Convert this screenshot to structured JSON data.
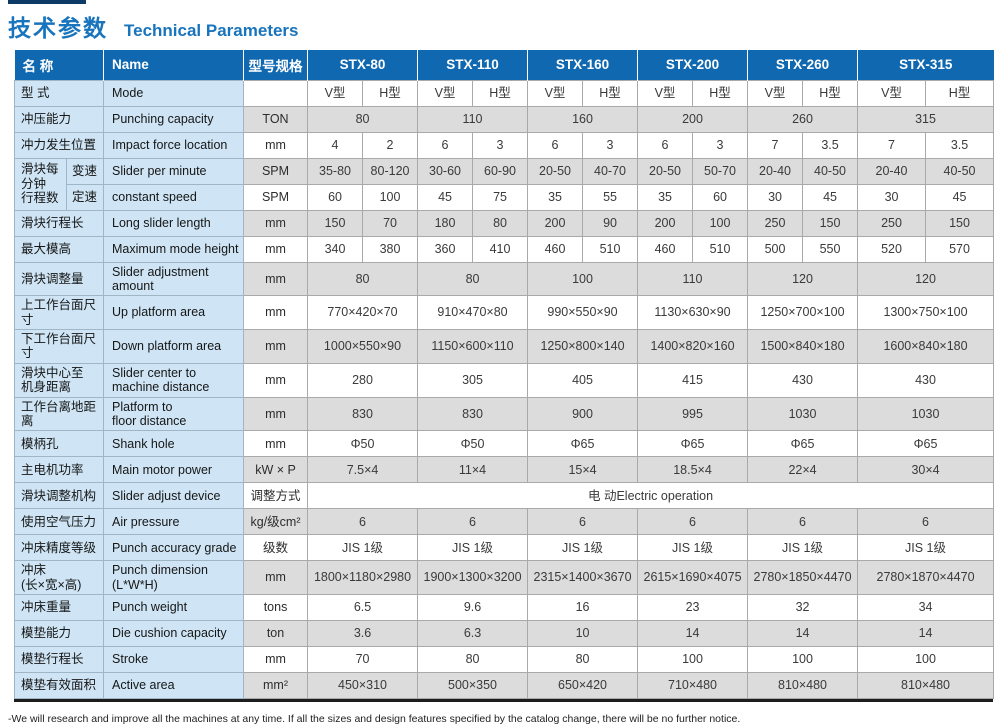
{
  "title": {
    "cn": "技术参数",
    "en": "Technical Parameters"
  },
  "footer": "-We will research and improve all the machines at any time. If all the sizes and design features specified by the catalog change, there will be no further notice.",
  "colors": {
    "header_blue": "#0f68b0",
    "title_blue": "#1874bc",
    "label_blue": "#cfe5f5",
    "row_gray": "#dcdcdc",
    "accent_navy": "#0d3a66"
  },
  "table": {
    "header": {
      "name_cn": "名 称",
      "name_en": "Name",
      "spec_label": "型号规格",
      "models": [
        "STX-80",
        "STX-110",
        "STX-160",
        "STX-200",
        "STX-260",
        "STX-315"
      ]
    },
    "rows": [
      {
        "cn": "型 式",
        "en": "Mode",
        "unit": "",
        "span": 1,
        "shade": "white",
        "cells": [
          "V型",
          "H型",
          "V型",
          "H型",
          "V型",
          "H型",
          "V型",
          "H型",
          "V型",
          "H型",
          "V型",
          "H型"
        ]
      },
      {
        "cn": "冲压能力",
        "en": "Punching capacity",
        "unit": "TON",
        "span": 2,
        "shade": "gray",
        "cells": [
          "80",
          "110",
          "160",
          "200",
          "260",
          "315"
        ]
      },
      {
        "cn": "冲力发生位置",
        "en": "Impact force location",
        "unit": "mm",
        "span": 1,
        "shade": "white",
        "cells": [
          "4",
          "2",
          "6",
          "3",
          "6",
          "3",
          "6",
          "3",
          "7",
          "3.5",
          "7",
          "3.5"
        ]
      },
      {
        "cn": "滑块每\n分钟\n行程数",
        "sub": "变速",
        "en": "Slider per minute",
        "unit": "SPM",
        "span": 1,
        "shade": "gray",
        "group": "start",
        "cells": [
          "35-80",
          "80-120",
          "30-60",
          "60-90",
          "20-50",
          "40-70",
          "20-50",
          "50-70",
          "20-40",
          "40-50",
          "20-40",
          "40-50"
        ]
      },
      {
        "sub": "定速",
        "en": "constant speed",
        "unit": "SPM",
        "span": 1,
        "shade": "white",
        "group": "end",
        "cells": [
          "60",
          "100",
          "45",
          "75",
          "35",
          "55",
          "35",
          "60",
          "30",
          "45",
          "30",
          "45"
        ]
      },
      {
        "cn": "滑块行程长",
        "en": "Long slider length",
        "unit": "mm",
        "span": 1,
        "shade": "gray",
        "cells": [
          "150",
          "70",
          "180",
          "80",
          "200",
          "90",
          "200",
          "100",
          "250",
          "150",
          "250",
          "150"
        ]
      },
      {
        "cn": "最大模高",
        "en": "Maximum mode height",
        "unit": "mm",
        "span": 1,
        "shade": "white",
        "cells": [
          "340",
          "380",
          "360",
          "410",
          "460",
          "510",
          "460",
          "510",
          "500",
          "550",
          "520",
          "570"
        ]
      },
      {
        "cn": "滑块调整量",
        "en": "Slider adjustment\namount",
        "unit": "mm",
        "span": 2,
        "shade": "gray",
        "cells": [
          "80",
          "80",
          "100",
          "110",
          "120",
          "120"
        ]
      },
      {
        "cn": "上工作台面尺寸",
        "en": "Up platform area",
        "unit": "mm",
        "span": 2,
        "shade": "white",
        "cells": [
          "770×420×70",
          "910×470×80",
          "990×550×90",
          "1130×630×90",
          "1250×700×100",
          "1300×750×100"
        ]
      },
      {
        "cn": "下工作台面尺寸",
        "en": "Down platform area",
        "unit": "mm",
        "span": 2,
        "shade": "gray",
        "cells": [
          "1000×550×90",
          "1150×600×110",
          "1250×800×140",
          "1400×820×160",
          "1500×840×180",
          "1600×840×180"
        ]
      },
      {
        "cn": "滑块中心至\n机身距离",
        "en": "Slider center to\nmachine distance",
        "unit": "mm",
        "span": 2,
        "shade": "white",
        "cells": [
          "280",
          "305",
          "405",
          "415",
          "430",
          "430"
        ]
      },
      {
        "cn": "工作台离地距离",
        "en": "Platform to\nfloor distance",
        "unit": "mm",
        "span": 2,
        "shade": "gray",
        "cells": [
          "830",
          "830",
          "900",
          "995",
          "1030",
          "1030"
        ]
      },
      {
        "cn": "模柄孔",
        "en": "Shank hole",
        "unit": "mm",
        "span": 2,
        "shade": "white",
        "cells": [
          "Φ50",
          "Φ50",
          "Φ65",
          "Φ65",
          "Φ65",
          "Φ65"
        ]
      },
      {
        "cn": "主电机功率",
        "en": "Main motor power",
        "unit": "kW × P",
        "span": 2,
        "shade": "gray",
        "cells": [
          "7.5×4",
          "11×4",
          "15×4",
          "18.5×4",
          "22×4",
          "30×4"
        ]
      },
      {
        "cn": "滑块调整机构",
        "en": "Slider adjust device",
        "unit": "调整方式",
        "span": 12,
        "shade": "white",
        "cells": [
          "电 动Electric operation"
        ]
      },
      {
        "cn": "使用空气压力",
        "en": "Air pressure",
        "unit": "kg/级cm²",
        "span": 2,
        "shade": "gray",
        "cells": [
          "6",
          "6",
          "6",
          "6",
          "6",
          "6"
        ]
      },
      {
        "cn": "冲床精度等级",
        "en": "Punch accuracy grade",
        "unit": "级数",
        "span": 2,
        "shade": "white",
        "cells": [
          "JIS 1级",
          "JIS 1级",
          "JIS 1级",
          "JIS 1级",
          "JIS 1级",
          "JIS 1级"
        ]
      },
      {
        "cn": "冲床\n(长×宽×高)",
        "en": "Punch dimension\n(L*W*H)",
        "unit": "mm",
        "span": 2,
        "shade": "gray",
        "cells": [
          "1800×1180×2980",
          "1900×1300×3200",
          "2315×1400×3670",
          "2615×1690×4075",
          "2780×1850×4470",
          "2780×1870×4470"
        ]
      },
      {
        "cn": "冲床重量",
        "en": "Punch weight",
        "unit": "tons",
        "span": 2,
        "shade": "white",
        "cells": [
          "6.5",
          "9.6",
          "16",
          "23",
          "32",
          "34"
        ]
      },
      {
        "cn": "模垫能力",
        "en": "Die cushion capacity",
        "unit": "ton",
        "span": 2,
        "shade": "gray",
        "cells": [
          "3.6",
          "6.3",
          "10",
          "14",
          "14",
          "14"
        ]
      },
      {
        "cn": "模垫行程长",
        "en": "Stroke",
        "unit": "mm",
        "span": 2,
        "shade": "white",
        "cells": [
          "70",
          "80",
          "80",
          "100",
          "100",
          "100"
        ]
      },
      {
        "cn": "模垫有效面积",
        "en": "Active area",
        "unit": "mm²",
        "span": 2,
        "shade": "gray",
        "cells": [
          "450×310",
          "500×350",
          "650×420",
          "710×480",
          "810×480",
          "810×480"
        ]
      }
    ]
  }
}
